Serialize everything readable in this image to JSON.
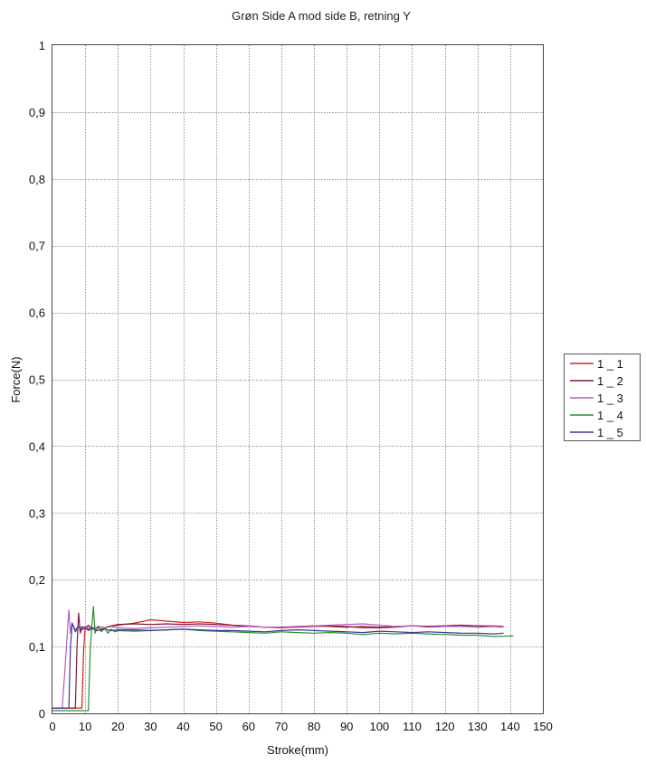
{
  "chart_data": {
    "type": "line",
    "title": "Grøn Side A mod side B, retning Y",
    "xlabel": "Stroke(mm)",
    "ylabel": "Force(N)",
    "xlim": [
      0,
      150
    ],
    "ylim": [
      0,
      1
    ],
    "x_ticks": [
      0,
      10,
      20,
      30,
      40,
      50,
      60,
      70,
      80,
      90,
      100,
      110,
      120,
      130,
      140,
      150
    ],
    "x_tick_labels": [
      "0",
      "10",
      "20",
      "30",
      "40",
      "50",
      "60",
      "70",
      "80",
      "90",
      "100",
      "110",
      "120",
      "130",
      "140",
      "150"
    ],
    "y_ticks": [
      0,
      0.1,
      0.2,
      0.3,
      0.4,
      0.5,
      0.6,
      0.7,
      0.8,
      0.9,
      1
    ],
    "y_tick_labels": [
      "0",
      "0,1",
      "0,2",
      "0,3",
      "0,4",
      "0,5",
      "0,6",
      "0,7",
      "0,8",
      "0,9",
      "1"
    ],
    "grid": true,
    "legend_position": "right",
    "series": [
      {
        "name": "1 _ 1",
        "color": "#d42020",
        "x": [
          0,
          9,
          9.5,
          10,
          11,
          12,
          13,
          14,
          15,
          17,
          20,
          25,
          30,
          35,
          40,
          45,
          50,
          55,
          60,
          65,
          70,
          75,
          80,
          85,
          90,
          95,
          100,
          105,
          110,
          115,
          120,
          125,
          130,
          135,
          138
        ],
        "y": [
          0.008,
          0.008,
          0.09,
          0.13,
          0.125,
          0.13,
          0.124,
          0.128,
          0.126,
          0.13,
          0.132,
          0.135,
          0.14,
          0.138,
          0.136,
          0.137,
          0.135,
          0.132,
          0.131,
          0.129,
          0.128,
          0.129,
          0.13,
          0.131,
          0.13,
          0.128,
          0.128,
          0.129,
          0.131,
          0.13,
          0.131,
          0.132,
          0.131,
          0.131,
          0.13
        ]
      },
      {
        "name": "1 _ 2",
        "color": "#7a1a35",
        "x": [
          0,
          7,
          7.5,
          8,
          8.5,
          9,
          10,
          11,
          12,
          14,
          16,
          18,
          20,
          25,
          30,
          35,
          40,
          45,
          50,
          55,
          60,
          65,
          70,
          75,
          80,
          85,
          90,
          95,
          100,
          105,
          110,
          115,
          120,
          125,
          130,
          135,
          137
        ],
        "y": [
          0.008,
          0.008,
          0.1,
          0.15,
          0.12,
          0.13,
          0.128,
          0.132,
          0.126,
          0.13,
          0.128,
          0.131,
          0.133,
          0.134,
          0.133,
          0.134,
          0.133,
          0.134,
          0.133,
          0.132,
          0.13,
          0.129,
          0.129,
          0.13,
          0.131,
          0.13,
          0.129,
          0.13,
          0.129,
          0.13,
          0.131,
          0.13,
          0.131,
          0.132,
          0.131,
          0.13,
          0.13
        ]
      },
      {
        "name": "1 _ 3",
        "color": "#b35cc4",
        "x": [
          0,
          3,
          4,
          5,
          5.5,
          6,
          7,
          8,
          9,
          10,
          12,
          14,
          16,
          18,
          20,
          25,
          30,
          35,
          40,
          45,
          50,
          55,
          60,
          65,
          70,
          75,
          80,
          85,
          90,
          95,
          100,
          105,
          110,
          115,
          120,
          125,
          130,
          135,
          138
        ],
        "y": [
          0.008,
          0.008,
          0.08,
          0.155,
          0.12,
          0.135,
          0.125,
          0.132,
          0.126,
          0.13,
          0.127,
          0.13,
          0.128,
          0.13,
          0.128,
          0.127,
          0.128,
          0.129,
          0.13,
          0.131,
          0.13,
          0.129,
          0.13,
          0.129,
          0.128,
          0.13,
          0.131,
          0.132,
          0.133,
          0.134,
          0.132,
          0.13,
          0.131,
          0.129,
          0.13,
          0.13,
          0.129,
          0.13,
          0.129
        ]
      },
      {
        "name": "1 _ 4",
        "color": "#2e8b2e",
        "x": [
          0,
          11,
          11.5,
          12,
          12.5,
          13,
          14,
          15,
          16,
          17,
          18,
          19,
          20,
          25,
          30,
          35,
          40,
          45,
          50,
          55,
          60,
          65,
          70,
          75,
          80,
          85,
          90,
          95,
          100,
          105,
          110,
          115,
          120,
          125,
          130,
          135,
          141
        ],
        "y": [
          0.004,
          0.004,
          0.09,
          0.13,
          0.16,
          0.12,
          0.13,
          0.122,
          0.128,
          0.12,
          0.126,
          0.122,
          0.124,
          0.123,
          0.124,
          0.125,
          0.126,
          0.124,
          0.123,
          0.122,
          0.121,
          0.12,
          0.122,
          0.121,
          0.12,
          0.121,
          0.12,
          0.118,
          0.12,
          0.119,
          0.12,
          0.119,
          0.118,
          0.117,
          0.117,
          0.115,
          0.116
        ]
      },
      {
        "name": "1 _ 5",
        "color": "#3a3a90",
        "x": [
          0,
          5,
          5.5,
          6,
          7,
          8,
          9,
          10,
          11,
          12,
          14,
          16,
          18,
          20,
          25,
          30,
          35,
          40,
          45,
          50,
          55,
          60,
          65,
          70,
          75,
          80,
          85,
          90,
          95,
          100,
          105,
          110,
          115,
          120,
          125,
          130,
          135,
          138
        ],
        "y": [
          0.008,
          0.008,
          0.1,
          0.135,
          0.122,
          0.13,
          0.125,
          0.128,
          0.124,
          0.127,
          0.124,
          0.126,
          0.124,
          0.125,
          0.125,
          0.124,
          0.125,
          0.126,
          0.125,
          0.124,
          0.124,
          0.123,
          0.122,
          0.124,
          0.125,
          0.124,
          0.123,
          0.122,
          0.121,
          0.123,
          0.122,
          0.121,
          0.122,
          0.121,
          0.12,
          0.12,
          0.119,
          0.12
        ]
      }
    ]
  }
}
